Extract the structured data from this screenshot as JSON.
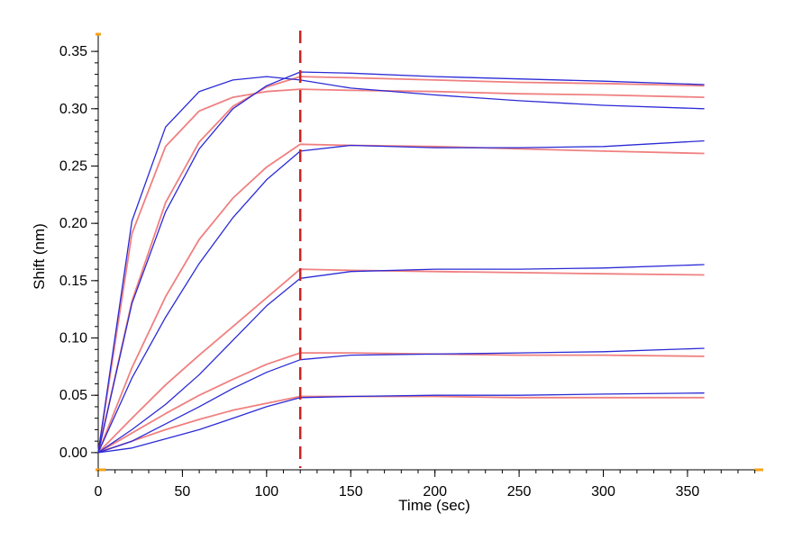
{
  "chart_data": {
    "type": "line",
    "title": "",
    "xlabel": "Time (sec)",
    "ylabel": "Shift (nm)",
    "xlim": [
      0,
      395
    ],
    "ylim": [
      -0.015,
      0.365
    ],
    "xticks": [
      0,
      50,
      100,
      150,
      200,
      250,
      300,
      350
    ],
    "xtick_labels": [
      "0",
      "50",
      "100",
      "150",
      "200",
      "250",
      "300",
      "350"
    ],
    "yticks": [
      0.0,
      0.05,
      0.1,
      0.15,
      0.2,
      0.25,
      0.3,
      0.35
    ],
    "ytick_labels": [
      "0.00",
      "0.05",
      "0.10",
      "0.15",
      "0.20",
      "0.25",
      "0.30",
      "0.35"
    ],
    "grid": false,
    "legend": "none",
    "dissociation_start_x": 120,
    "x": [
      0,
      20,
      40,
      60,
      80,
      100,
      120,
      150,
      200,
      250,
      300,
      360
    ],
    "series": [
      {
        "kind": "fit",
        "values": [
          0.0,
          0.191,
          0.267,
          0.298,
          0.31,
          0.315,
          0.317,
          0.316,
          0.315,
          0.313,
          0.312,
          0.31
        ]
      },
      {
        "kind": "fit",
        "values": [
          0.0,
          0.132,
          0.218,
          0.271,
          0.302,
          0.319,
          0.328,
          0.327,
          0.325,
          0.323,
          0.322,
          0.32
        ]
      },
      {
        "kind": "fit",
        "values": [
          0.0,
          0.074,
          0.136,
          0.186,
          0.222,
          0.249,
          0.269,
          0.268,
          0.267,
          0.265,
          0.263,
          0.261
        ]
      },
      {
        "kind": "fit",
        "values": [
          0.0,
          0.03,
          0.059,
          0.085,
          0.11,
          0.135,
          0.16,
          0.159,
          0.158,
          0.157,
          0.156,
          0.155
        ]
      },
      {
        "kind": "fit",
        "values": [
          0.0,
          0.017,
          0.034,
          0.05,
          0.064,
          0.077,
          0.087,
          0.087,
          0.086,
          0.085,
          0.085,
          0.084
        ]
      },
      {
        "kind": "fit",
        "values": [
          0.0,
          0.01,
          0.02,
          0.029,
          0.037,
          0.043,
          0.049,
          0.049,
          0.049,
          0.048,
          0.048,
          0.048
        ]
      },
      {
        "kind": "measured",
        "values": [
          0.0,
          0.202,
          0.284,
          0.315,
          0.325,
          0.328,
          0.325,
          0.318,
          0.312,
          0.307,
          0.303,
          0.3
        ]
      },
      {
        "kind": "measured",
        "values": [
          0.0,
          0.13,
          0.21,
          0.265,
          0.3,
          0.32,
          0.332,
          0.331,
          0.328,
          0.326,
          0.324,
          0.321
        ]
      },
      {
        "kind": "measured",
        "values": [
          0.0,
          0.065,
          0.118,
          0.165,
          0.205,
          0.238,
          0.263,
          0.268,
          0.266,
          0.266,
          0.267,
          0.272
        ]
      },
      {
        "kind": "measured",
        "values": [
          0.0,
          0.02,
          0.042,
          0.068,
          0.098,
          0.128,
          0.152,
          0.158,
          0.16,
          0.16,
          0.161,
          0.164
        ]
      },
      {
        "kind": "measured",
        "values": [
          0.0,
          0.01,
          0.025,
          0.04,
          0.056,
          0.07,
          0.081,
          0.085,
          0.086,
          0.087,
          0.088,
          0.091
        ]
      },
      {
        "kind": "measured",
        "values": [
          0.0,
          0.004,
          0.012,
          0.02,
          0.03,
          0.04,
          0.048,
          0.049,
          0.05,
          0.05,
          0.051,
          0.052
        ]
      }
    ],
    "colors": {
      "measured": "#2a2ad6",
      "fit": "#f08080",
      "dissociation_marker": "#cc2222",
      "axis_end_markers": "#f5a31a"
    }
  }
}
